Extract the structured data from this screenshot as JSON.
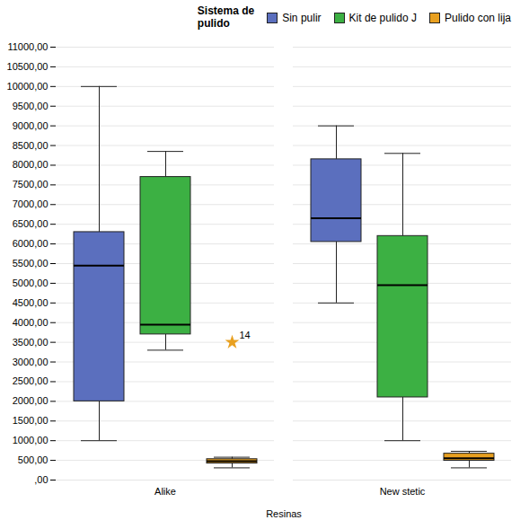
{
  "chart_data": {
    "type": "box",
    "xlabel": "Resinas",
    "categories": [
      "Alike",
      "New stetic"
    ],
    "ylim": [
      0,
      11000
    ],
    "yticks": [
      {
        "value": 0,
        "label": ",00"
      },
      {
        "value": 500,
        "label": "500,00"
      },
      {
        "value": 1000,
        "label": "1000,00"
      },
      {
        "value": 1500,
        "label": "1500,00"
      },
      {
        "value": 2000,
        "label": "2000,00"
      },
      {
        "value": 2500,
        "label": "2500,00"
      },
      {
        "value": 3000,
        "label": "3000,00"
      },
      {
        "value": 3500,
        "label": "3500,00"
      },
      {
        "value": 4000,
        "label": "4000,00"
      },
      {
        "value": 4500,
        "label": "4500,00"
      },
      {
        "value": 5000,
        "label": "5000,00"
      },
      {
        "value": 5500,
        "label": "5500,00"
      },
      {
        "value": 6000,
        "label": "6000,00"
      },
      {
        "value": 6500,
        "label": "6500,00"
      },
      {
        "value": 7000,
        "label": "7000,00"
      },
      {
        "value": 7500,
        "label": "7500,00"
      },
      {
        "value": 8000,
        "label": "8000,00"
      },
      {
        "value": 8500,
        "label": "8500,00"
      },
      {
        "value": 9000,
        "label": "9000,00"
      },
      {
        "value": 9500,
        "label": "9500,00"
      },
      {
        "value": 10000,
        "label": "10000,00"
      },
      {
        "value": 10500,
        "label": "10500,00"
      },
      {
        "value": 11000,
        "label": "11000,00"
      }
    ],
    "grid": true,
    "legend": "upper right",
    "legend_title": "Sistema de\npulido",
    "series": [
      {
        "name": "Sin pulir",
        "color": "#5b6fbe",
        "values": [
          {
            "q1": 2000,
            "q3": 6300,
            "median": 5450,
            "whislo": 1000,
            "whishi": 10000
          },
          {
            "q1": 6050,
            "q3": 8150,
            "median": 6650,
            "whislo": 4500,
            "whishi": 9000
          }
        ]
      },
      {
        "name": "Kit de pulido J",
        "color": "#3cb043",
        "values": [
          {
            "q1": 3700,
            "q3": 7700,
            "median": 3950,
            "whislo": 3300,
            "whishi": 8350
          },
          {
            "q1": 2100,
            "q3": 6200,
            "median": 4950,
            "whislo": 1000,
            "whishi": 8300
          }
        ]
      },
      {
        "name": "Pulido con lija",
        "color": "#e8a020",
        "values": [
          {
            "q1": 420,
            "q3": 530,
            "median": 480,
            "whislo": 310,
            "whishi": 580
          },
          {
            "q1": 490,
            "q3": 670,
            "median": 555,
            "whislo": 310,
            "whishi": 730
          }
        ],
        "outliers": [
          {
            "category": "Alike",
            "value": 3500,
            "label": "14"
          }
        ]
      }
    ]
  }
}
